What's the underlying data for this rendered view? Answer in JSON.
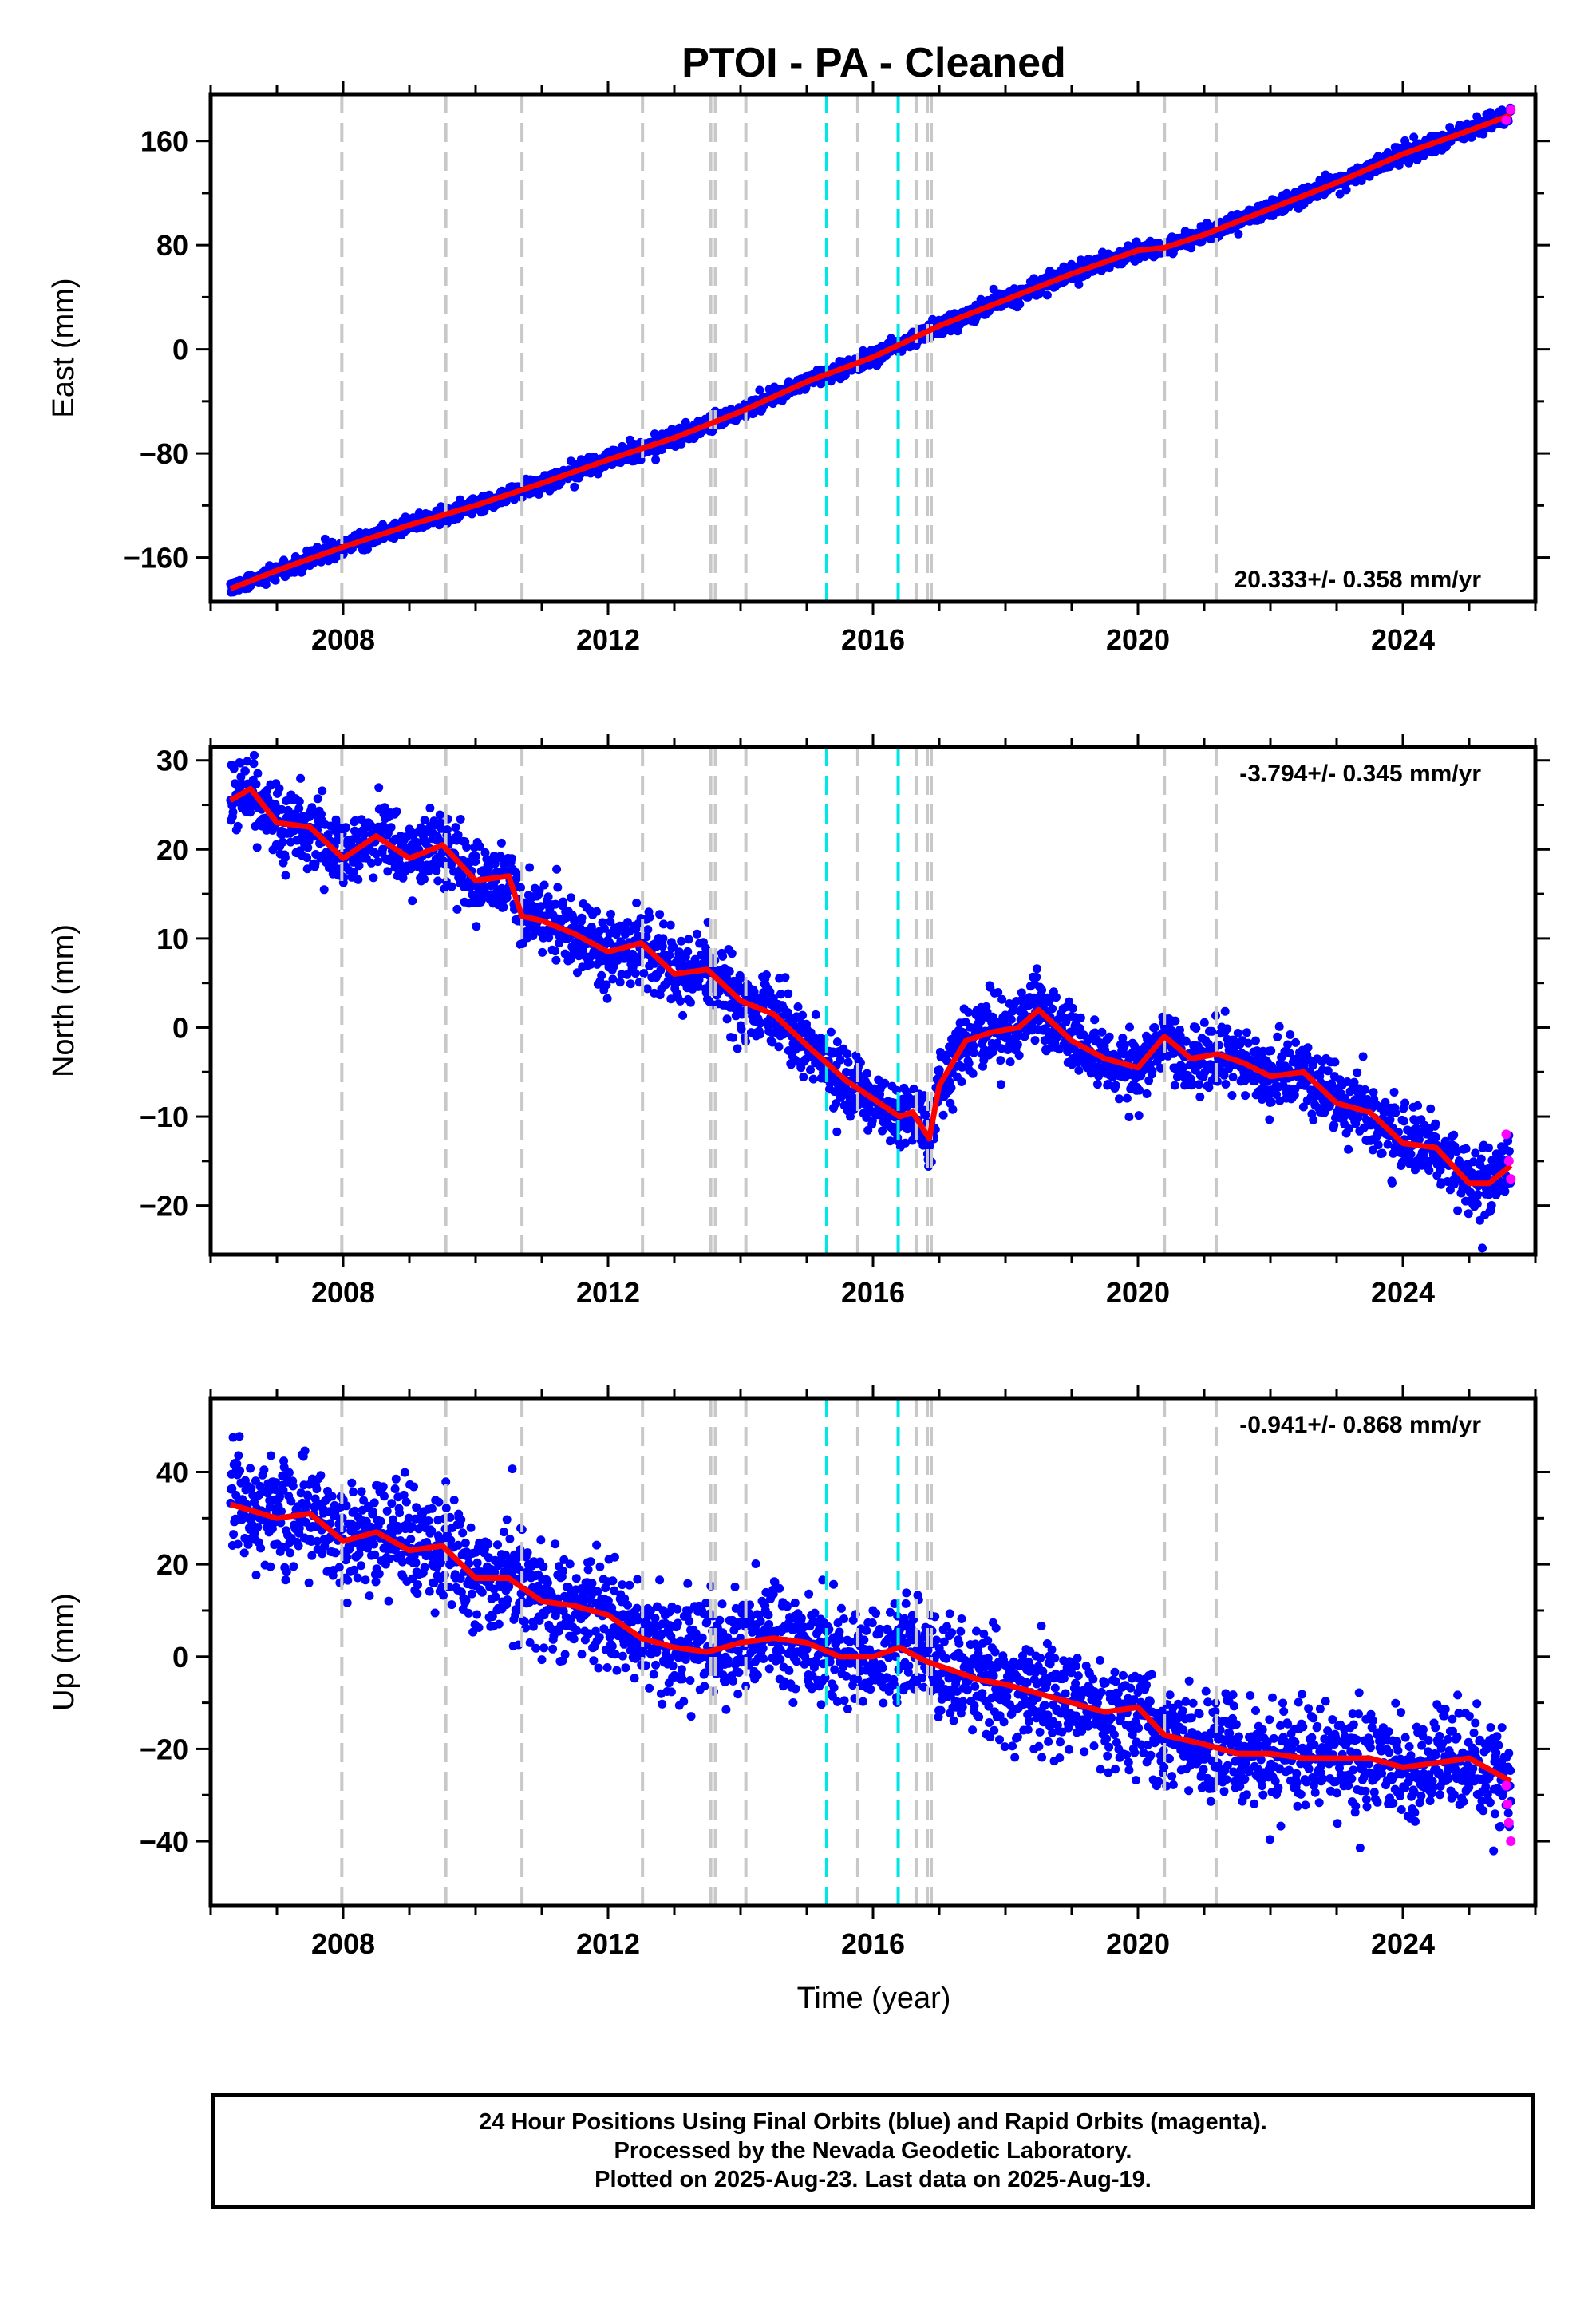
{
  "title": "PTOI  - PA - Cleaned",
  "xlabel": "Time (year)",
  "caption": {
    "line1": "24 Hour Positions Using Final Orbits (blue) and Rapid Orbits (magenta).",
    "line2": "Processed by the Nevada Geodetic Laboratory.",
    "line3": "Plotted on 2025-Aug-23. Last data on 2025-Aug-19."
  },
  "colors": {
    "final_orbits": "#0000ff",
    "rapid_orbits": "#ff00ff",
    "model_fit": "#ff0000",
    "equipment_change_line": "#c8c8c8",
    "earthquake_line": "#00e6e6"
  },
  "chart_data": [
    {
      "type": "scatter",
      "ylabel": "East (mm)",
      "rate_label": "20.333+/- 0.358 mm/yr",
      "xlim": [
        2006.0,
        2026.0
      ],
      "ylim": [
        -194,
        196
      ],
      "x_ticks": [
        2008,
        2012,
        2016,
        2020,
        2024
      ],
      "y_ticks": [
        -160,
        -80,
        0,
        80,
        160
      ],
      "grid": false,
      "data_span": [
        2006.3,
        2025.63
      ],
      "noise_mm": 3.2,
      "model_fit": {
        "x": [
          2006.3,
          2007.0,
          2008.0,
          2009.0,
          2010.0,
          2011.0,
          2012.0,
          2013.0,
          2014.0,
          2015.0,
          2016.0,
          2017.0,
          2018.0,
          2019.0,
          2020.0,
          2020.4,
          2021.0,
          2022.0,
          2023.0,
          2024.0,
          2025.0,
          2025.63
        ],
        "y": [
          -184,
          -170,
          -152,
          -135,
          -120,
          -103,
          -85,
          -68,
          -48,
          -25,
          -6,
          18,
          38,
          58,
          76,
          78,
          88,
          108,
          128,
          150,
          168,
          180
        ]
      },
      "rapid_points": {
        "x": [
          2025.56,
          2025.63
        ],
        "y": [
          176,
          184
        ]
      }
    },
    {
      "type": "scatter",
      "ylabel": "North (mm)",
      "rate_label": "-3.794+/- 0.345 mm/yr",
      "xlim": [
        2006.0,
        2026.0
      ],
      "ylim": [
        -25.5,
        31.5
      ],
      "x_ticks": [
        2008,
        2012,
        2016,
        2020,
        2024
      ],
      "y_ticks": [
        -20,
        -10,
        0,
        10,
        20,
        30
      ],
      "grid": false,
      "data_span": [
        2006.3,
        2025.63
      ],
      "noise_mm": 1.9,
      "model_fit": {
        "x": [
          2006.3,
          2006.6,
          2007.0,
          2007.5,
          2008.0,
          2008.5,
          2009.0,
          2009.5,
          2010.0,
          2010.5,
          2010.7,
          2011.0,
          2011.5,
          2012.0,
          2012.5,
          2013.0,
          2013.5,
          2014.0,
          2014.5,
          2015.0,
          2015.3,
          2015.6,
          2016.0,
          2016.4,
          2016.6,
          2016.85,
          2017.0,
          2017.4,
          2017.8,
          2018.2,
          2018.5,
          2019.0,
          2019.5,
          2020.0,
          2020.4,
          2020.8,
          2021.2,
          2021.6,
          2022.0,
          2022.5,
          2023.0,
          2023.5,
          2024.0,
          2024.5,
          2025.0,
          2025.3,
          2025.63
        ],
        "y": [
          25.5,
          26.8,
          23.0,
          22.5,
          19.0,
          21.5,
          19.0,
          20.5,
          16.5,
          17.0,
          12.5,
          12.0,
          10.5,
          8.5,
          9.5,
          6.0,
          6.5,
          3.0,
          1.5,
          -2.0,
          -4.0,
          -6.0,
          -8.0,
          -10.0,
          -9.5,
          -12.5,
          -6.5,
          -1.5,
          -0.5,
          0.0,
          2.0,
          -1.5,
          -3.5,
          -4.5,
          -1.0,
          -3.5,
          -3.0,
          -4.0,
          -5.5,
          -5.0,
          -8.5,
          -9.5,
          -13.0,
          -13.5,
          -17.5,
          -17.5,
          -15.5
        ]
      },
      "rapid_points": {
        "x": [
          2025.56,
          2025.6,
          2025.63
        ],
        "y": [
          -12.0,
          -15.0,
          -17.0
        ]
      }
    },
    {
      "type": "scatter",
      "ylabel": "Up (mm)",
      "rate_label": "-0.941+/- 0.868 mm/yr",
      "xlim": [
        2006.0,
        2026.0
      ],
      "ylim": [
        -54,
        56
      ],
      "x_ticks": [
        2008,
        2012,
        2016,
        2020,
        2024
      ],
      "y_ticks": [
        -40,
        -20,
        0,
        20,
        40
      ],
      "grid": false,
      "data_span": [
        2006.3,
        2025.63
      ],
      "noise_mm": 5.5,
      "model_fit": {
        "x": [
          2006.3,
          2007.0,
          2007.5,
          2008.0,
          2008.5,
          2009.0,
          2009.5,
          2010.0,
          2010.5,
          2011.0,
          2011.5,
          2012.0,
          2012.5,
          2013.0,
          2013.5,
          2014.0,
          2014.5,
          2015.0,
          2015.5,
          2016.0,
          2016.4,
          2016.8,
          2017.2,
          2017.6,
          2018.0,
          2018.5,
          2019.0,
          2019.5,
          2020.0,
          2020.4,
          2021.0,
          2021.5,
          2022.0,
          2022.5,
          2023.0,
          2023.5,
          2024.0,
          2024.5,
          2025.0,
          2025.63
        ],
        "y": [
          33,
          30,
          31,
          25,
          27,
          23,
          24,
          17,
          17,
          12,
          11,
          9,
          4,
          2,
          1,
          3,
          4,
          3,
          0,
          0,
          2,
          -1,
          -3,
          -5,
          -6,
          -8,
          -10,
          -12,
          -11,
          -17,
          -19,
          -21,
          -21,
          -22,
          -22,
          -22,
          -24,
          -23,
          -22,
          -27
        ]
      },
      "rapid_points": {
        "x": [
          2025.56,
          2025.58,
          2025.6,
          2025.63
        ],
        "y": [
          -28,
          -32,
          -36,
          -40
        ]
      }
    }
  ],
  "event_lines": {
    "equipment_change_years": [
      2007.98,
      2009.55,
      2010.7,
      2012.52,
      2013.55,
      2013.62,
      2014.08,
      2015.77,
      2016.65,
      2016.82,
      2016.88,
      2020.4,
      2021.18
    ],
    "earthquake_years": [
      2015.3,
      2016.38
    ]
  }
}
